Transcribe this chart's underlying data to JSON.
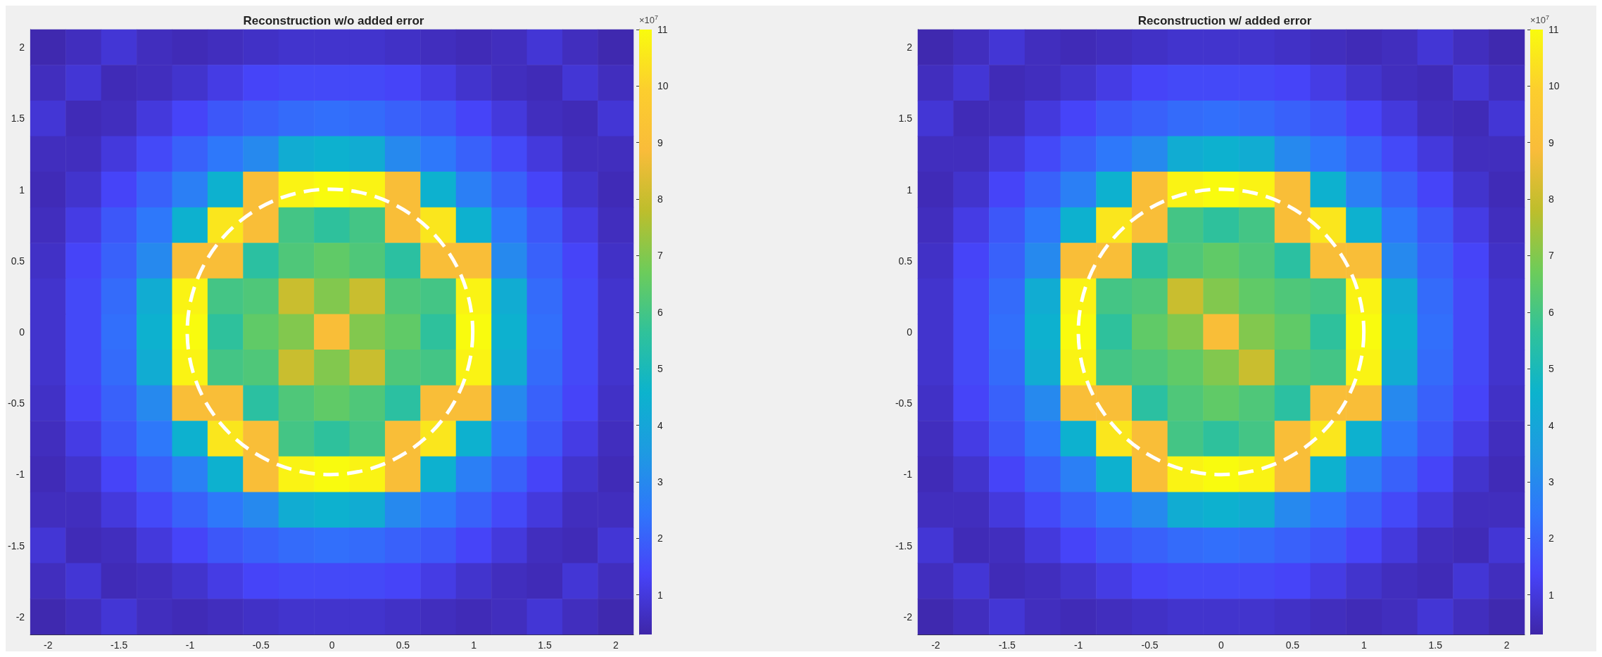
{
  "chart_data": [
    {
      "type": "heatmap",
      "title": "Reconstruction w/o added error",
      "clabel": "×10$^{7}$",
      "categories": [
        "-2",
        null,
        "-1.5",
        null,
        "-1",
        null,
        "-0.5",
        null,
        "0",
        null,
        "0.5",
        null,
        "1",
        null,
        "1.5",
        null,
        "2"
      ],
      "y_categories": [
        "2",
        null,
        "1.5",
        null,
        "1",
        null,
        "0.5",
        null,
        "0",
        null,
        "-0.5",
        null,
        "-1",
        null,
        "-1.5",
        null,
        "-2"
      ],
      "clim": [
        0.3,
        11
      ],
      "cticks": [
        1,
        2,
        3,
        4,
        5,
        6,
        7,
        8,
        9,
        10,
        11
      ],
      "grid": false,
      "cells": [
        [
          0.4,
          0.6,
          0.9,
          0.6,
          0.5,
          0.6,
          0.7,
          0.8,
          0.8,
          0.8,
          0.7,
          0.6,
          0.5,
          0.6,
          0.9,
          0.6,
          0.4
        ],
        [
          0.6,
          0.9,
          0.5,
          0.6,
          0.8,
          1.1,
          1.4,
          1.5,
          1.5,
          1.5,
          1.4,
          1.1,
          0.8,
          0.6,
          0.5,
          0.9,
          0.6
        ],
        [
          0.9,
          0.5,
          0.6,
          1,
          1.4,
          1.8,
          2,
          2.2,
          2.3,
          2.2,
          2,
          1.8,
          1.4,
          1,
          0.6,
          0.5,
          0.9
        ],
        [
          0.6,
          0.6,
          1,
          1.5,
          2,
          2.5,
          3,
          4.3,
          4.5,
          4.3,
          3,
          2.5,
          2,
          1.5,
          1,
          0.6,
          0.6
        ],
        [
          0.5,
          0.8,
          1.4,
          2,
          2.7,
          4.5,
          9,
          10.8,
          11,
          10.8,
          9,
          4.5,
          2.7,
          2,
          1.4,
          0.8,
          0.5
        ],
        [
          0.6,
          1.1,
          1.8,
          2.5,
          4.5,
          10.5,
          9,
          6,
          5.6,
          6,
          9,
          10.5,
          4.5,
          2.5,
          1.8,
          1.1,
          0.6
        ],
        [
          0.7,
          1.4,
          2,
          3,
          9,
          9,
          5.5,
          6.2,
          6.5,
          6.2,
          5.5,
          9,
          9,
          3,
          2,
          1.4,
          0.7
        ],
        [
          0.8,
          1.5,
          2.2,
          4.3,
          10.8,
          6,
          6.2,
          8,
          7,
          8,
          6.2,
          6,
          10.8,
          4.3,
          2.2,
          1.5,
          0.8
        ],
        [
          0.8,
          1.5,
          2.3,
          4.5,
          11,
          5.6,
          6.5,
          7,
          9,
          7,
          6.5,
          5.6,
          11,
          4.5,
          2.3,
          1.5,
          0.8
        ],
        [
          0.8,
          1.5,
          2.2,
          4.3,
          10.8,
          6,
          6.2,
          8,
          7,
          8,
          6.2,
          6,
          10.8,
          4.3,
          2.2,
          1.5,
          0.8
        ],
        [
          0.7,
          1.4,
          2,
          3,
          9,
          9,
          5.5,
          6.2,
          6.5,
          6.2,
          5.5,
          9,
          9,
          3,
          2,
          1.4,
          0.7
        ],
        [
          0.6,
          1.1,
          1.8,
          2.5,
          4.5,
          10.5,
          9,
          6,
          5.6,
          6,
          9,
          10.5,
          4.5,
          2.5,
          1.8,
          1.1,
          0.6
        ],
        [
          0.5,
          0.8,
          1.4,
          2,
          2.7,
          4.5,
          9,
          10.8,
          11,
          10.8,
          9,
          4.5,
          2.7,
          2,
          1.4,
          0.8,
          0.5
        ],
        [
          0.6,
          0.6,
          1,
          1.5,
          2,
          2.5,
          3,
          4.3,
          4.5,
          4.3,
          3,
          2.5,
          2,
          1.5,
          1,
          0.6,
          0.6
        ],
        [
          0.9,
          0.5,
          0.6,
          1,
          1.4,
          1.8,
          2,
          2.2,
          2.3,
          2.2,
          2,
          1.8,
          1.4,
          1,
          0.6,
          0.5,
          0.9
        ],
        [
          0.6,
          0.9,
          0.5,
          0.6,
          0.8,
          1.1,
          1.4,
          1.5,
          1.5,
          1.5,
          1.4,
          1.1,
          0.8,
          0.6,
          0.5,
          0.9,
          0.6
        ],
        [
          0.4,
          0.6,
          0.9,
          0.6,
          0.5,
          0.6,
          0.7,
          0.8,
          0.8,
          0.8,
          0.7,
          0.6,
          0.5,
          0.6,
          0.9,
          0.6,
          0.4
        ]
      ]
    },
    {
      "type": "heatmap",
      "title": "Reconstruction w/ added error",
      "clabel": "×10$^{7}$",
      "categories": [
        "-2",
        null,
        "-1.5",
        null,
        "-1",
        null,
        "-0.5",
        null,
        "0",
        null,
        "0.5",
        null,
        "1",
        null,
        "1.5",
        null,
        "2"
      ],
      "y_categories": [
        "2",
        null,
        "1.5",
        null,
        "1",
        null,
        "0.5",
        null,
        "0",
        null,
        "-0.5",
        null,
        "-1",
        null,
        "-1.5",
        null,
        "-2"
      ],
      "clim": [
        0.3,
        11
      ],
      "cticks": [
        1,
        2,
        3,
        4,
        5,
        6,
        7,
        8,
        9,
        10,
        11
      ],
      "grid": false,
      "cells": [
        [
          0.4,
          0.6,
          0.9,
          0.6,
          0.5,
          0.6,
          0.7,
          0.8,
          0.8,
          0.8,
          0.7,
          0.6,
          0.5,
          0.6,
          0.9,
          0.6,
          0.4
        ],
        [
          0.6,
          0.9,
          0.5,
          0.6,
          0.8,
          1.1,
          1.4,
          1.5,
          1.5,
          1.5,
          1.4,
          1.1,
          0.8,
          0.6,
          0.5,
          0.9,
          0.6
        ],
        [
          0.9,
          0.5,
          0.6,
          1,
          1.4,
          1.8,
          2,
          2.2,
          2.3,
          2.2,
          2,
          1.8,
          1.4,
          1,
          0.6,
          0.5,
          0.9
        ],
        [
          0.6,
          0.6,
          1,
          1.5,
          2,
          2.5,
          3,
          4.3,
          4.5,
          4.3,
          3,
          2.5,
          2,
          1.5,
          1,
          0.6,
          0.6
        ],
        [
          0.5,
          0.8,
          1.4,
          2,
          2.7,
          4.5,
          9,
          10.8,
          11,
          10.8,
          9,
          4.5,
          2.7,
          2,
          1.4,
          0.8,
          0.5
        ],
        [
          0.6,
          1.1,
          1.8,
          2.5,
          4.5,
          10.5,
          9,
          6,
          5.6,
          6,
          9,
          10.5,
          4.5,
          2.5,
          1.8,
          1.1,
          0.6
        ],
        [
          0.7,
          1.4,
          2,
          3,
          9,
          9,
          5.5,
          6.2,
          6.5,
          6.2,
          5.5,
          9,
          9,
          3,
          2,
          1.4,
          0.7
        ],
        [
          0.8,
          1.5,
          2.2,
          4.3,
          10.8,
          6,
          6.2,
          8,
          7,
          6.5,
          6.2,
          6,
          10.8,
          4.3,
          2.2,
          1.5,
          0.8
        ],
        [
          0.8,
          1.5,
          2.3,
          4.5,
          11,
          5.6,
          6.5,
          7,
          9,
          7,
          6.5,
          5.6,
          11,
          4.5,
          2.3,
          1.5,
          0.8
        ],
        [
          0.8,
          1.5,
          2.2,
          4.3,
          10.8,
          6,
          6.2,
          6.5,
          7,
          8,
          6.2,
          6,
          10.8,
          4.3,
          2.2,
          1.5,
          0.8
        ],
        [
          0.7,
          1.4,
          2,
          3,
          9,
          9,
          5.5,
          6.2,
          6.5,
          6.2,
          5.5,
          9,
          9,
          3,
          2,
          1.4,
          0.7
        ],
        [
          0.6,
          1.1,
          1.8,
          2.5,
          4.5,
          10.5,
          9,
          6,
          5.6,
          6,
          9,
          10.5,
          4.5,
          2.5,
          1.8,
          1.1,
          0.6
        ],
        [
          0.5,
          0.8,
          1.4,
          2,
          2.7,
          4.5,
          9,
          10.8,
          11,
          10.8,
          9,
          4.5,
          2.7,
          2,
          1.4,
          0.8,
          0.5
        ],
        [
          0.6,
          0.6,
          1,
          1.5,
          2,
          2.5,
          3,
          4.3,
          4.5,
          4.3,
          3,
          2.5,
          2,
          1.5,
          1,
          0.6,
          0.6
        ],
        [
          0.9,
          0.5,
          0.6,
          1,
          1.4,
          1.8,
          2,
          2.2,
          2.3,
          2.2,
          2,
          1.8,
          1.4,
          1,
          0.6,
          0.5,
          0.9
        ],
        [
          0.6,
          0.9,
          0.5,
          0.6,
          0.8,
          1.1,
          1.4,
          1.5,
          1.5,
          1.5,
          1.4,
          1.1,
          0.8,
          0.6,
          0.5,
          0.9,
          0.6
        ],
        [
          0.4,
          0.6,
          0.9,
          0.6,
          0.5,
          0.6,
          0.7,
          0.8,
          0.8,
          0.8,
          0.7,
          0.6,
          0.5,
          0.6,
          0.9,
          0.6,
          0.4
        ]
      ]
    }
  ]
}
